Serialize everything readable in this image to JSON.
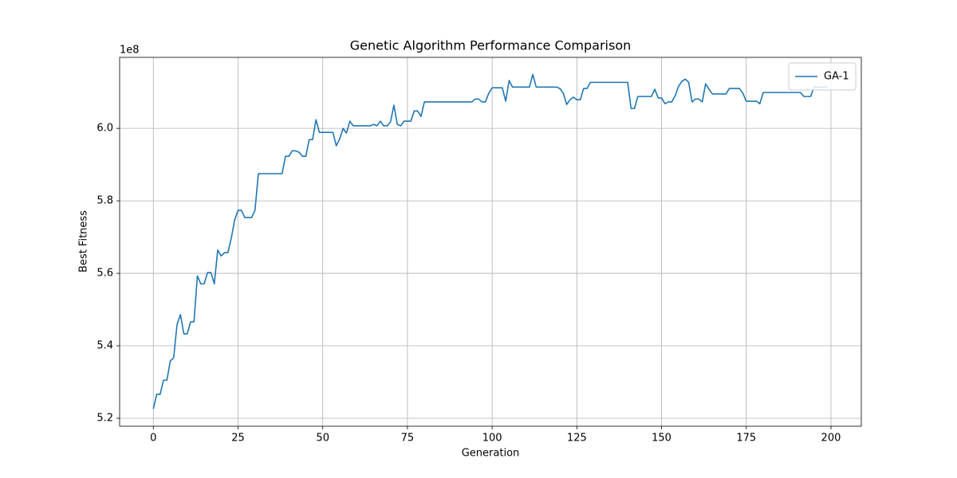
{
  "chart_data": {
    "type": "line",
    "title": "Genetic Algorithm Performance Comparison",
    "x_label": "Generation",
    "y_label": "Best Fitness",
    "y_offset_label": "1e8",
    "x": [
      0,
      1,
      2,
      3,
      4,
      5,
      6,
      7,
      8,
      9,
      10,
      11,
      12,
      13,
      14,
      15,
      16,
      17,
      18,
      19,
      20,
      21,
      22,
      23,
      24,
      25,
      26,
      27,
      28,
      29,
      30,
      31,
      32,
      33,
      34,
      35,
      36,
      37,
      38,
      39,
      40,
      41,
      42,
      43,
      44,
      45,
      46,
      47,
      48,
      49,
      50,
      51,
      52,
      53,
      54,
      55,
      56,
      57,
      58,
      59,
      60,
      61,
      62,
      63,
      64,
      65,
      66,
      67,
      68,
      69,
      70,
      71,
      72,
      73,
      74,
      75,
      76,
      77,
      78,
      79,
      80,
      81,
      82,
      83,
      84,
      85,
      86,
      87,
      88,
      89,
      90,
      91,
      92,
      93,
      94,
      95,
      96,
      97,
      98,
      99,
      100,
      101,
      102,
      103,
      104,
      105,
      106,
      107,
      108,
      109,
      110,
      111,
      112,
      113,
      114,
      115,
      116,
      117,
      118,
      119,
      120,
      121,
      122,
      123,
      124,
      125,
      126,
      127,
      128,
      129,
      130,
      131,
      132,
      133,
      134,
      135,
      136,
      137,
      138,
      139,
      140,
      141,
      142,
      143,
      144,
      145,
      146,
      147,
      148,
      149,
      150,
      151,
      152,
      153,
      154,
      155,
      156,
      157,
      158,
      159,
      160,
      161,
      162,
      163,
      164,
      165,
      166,
      167,
      168,
      169,
      170,
      171,
      172,
      173,
      174,
      175,
      176,
      177,
      178,
      179,
      180,
      181,
      182,
      183,
      184,
      185,
      186,
      187,
      188,
      189,
      190,
      191,
      192,
      193,
      194,
      195,
      196,
      197,
      198,
      199
    ],
    "series": [
      {
        "name": "GA-1",
        "color": "#1f77b4",
        "values": [
          5.226,
          5.266,
          5.266,
          5.305,
          5.305,
          5.358,
          5.367,
          5.459,
          5.486,
          5.433,
          5.433,
          5.466,
          5.466,
          5.593,
          5.571,
          5.571,
          5.602,
          5.602,
          5.571,
          5.664,
          5.648,
          5.657,
          5.657,
          5.697,
          5.747,
          5.774,
          5.774,
          5.754,
          5.754,
          5.754,
          5.774,
          5.875,
          5.875,
          5.875,
          5.875,
          5.875,
          5.875,
          5.875,
          5.875,
          5.923,
          5.923,
          5.938,
          5.938,
          5.934,
          5.923,
          5.923,
          5.969,
          5.969,
          6.024,
          5.989,
          5.989,
          5.989,
          5.989,
          5.989,
          5.952,
          5.971,
          6.0,
          5.987,
          6.02,
          6.007,
          6.007,
          6.007,
          6.007,
          6.007,
          6.007,
          6.011,
          6.007,
          6.02,
          6.007,
          6.007,
          6.018,
          6.064,
          6.011,
          6.007,
          6.02,
          6.02,
          6.02,
          6.048,
          6.048,
          6.033,
          6.073,
          6.073,
          6.073,
          6.073,
          6.073,
          6.073,
          6.073,
          6.073,
          6.073,
          6.073,
          6.073,
          6.073,
          6.073,
          6.073,
          6.073,
          6.081,
          6.081,
          6.073,
          6.073,
          6.097,
          6.112,
          6.112,
          6.112,
          6.112,
          6.075,
          6.132,
          6.114,
          6.114,
          6.114,
          6.114,
          6.114,
          6.114,
          6.149,
          6.114,
          6.114,
          6.114,
          6.114,
          6.114,
          6.114,
          6.114,
          6.11,
          6.097,
          6.066,
          6.079,
          6.086,
          6.079,
          6.079,
          6.11,
          6.11,
          6.127,
          6.127,
          6.127,
          6.127,
          6.127,
          6.127,
          6.127,
          6.127,
          6.127,
          6.127,
          6.127,
          6.127,
          6.055,
          6.055,
          6.088,
          6.088,
          6.088,
          6.088,
          6.088,
          6.108,
          6.084,
          6.084,
          6.068,
          6.073,
          6.073,
          6.09,
          6.116,
          6.13,
          6.136,
          6.127,
          6.073,
          6.081,
          6.081,
          6.073,
          6.123,
          6.108,
          6.095,
          6.095,
          6.095,
          6.095,
          6.095,
          6.11,
          6.11,
          6.11,
          6.11,
          6.097,
          6.075,
          6.075,
          6.075,
          6.075,
          6.068,
          6.099,
          6.099,
          6.099,
          6.099,
          6.099,
          6.099,
          6.099,
          6.099,
          6.099,
          6.099,
          6.099,
          6.099,
          6.088,
          6.088,
          6.088,
          6.114,
          6.114,
          6.114,
          6.114,
          6.114
        ]
      }
    ],
    "xlim": [
      -9.95,
      208.95
    ],
    "ylim": [
      5.178,
      6.196
    ],
    "xticks": [
      0,
      25,
      50,
      75,
      100,
      125,
      150,
      175,
      200
    ],
    "yticks": [
      5.2,
      5.4,
      5.6,
      5.8,
      {
        "value": 6,
        "label": "6.0"
      }
    ],
    "grid": true,
    "legend": "upper right"
  }
}
